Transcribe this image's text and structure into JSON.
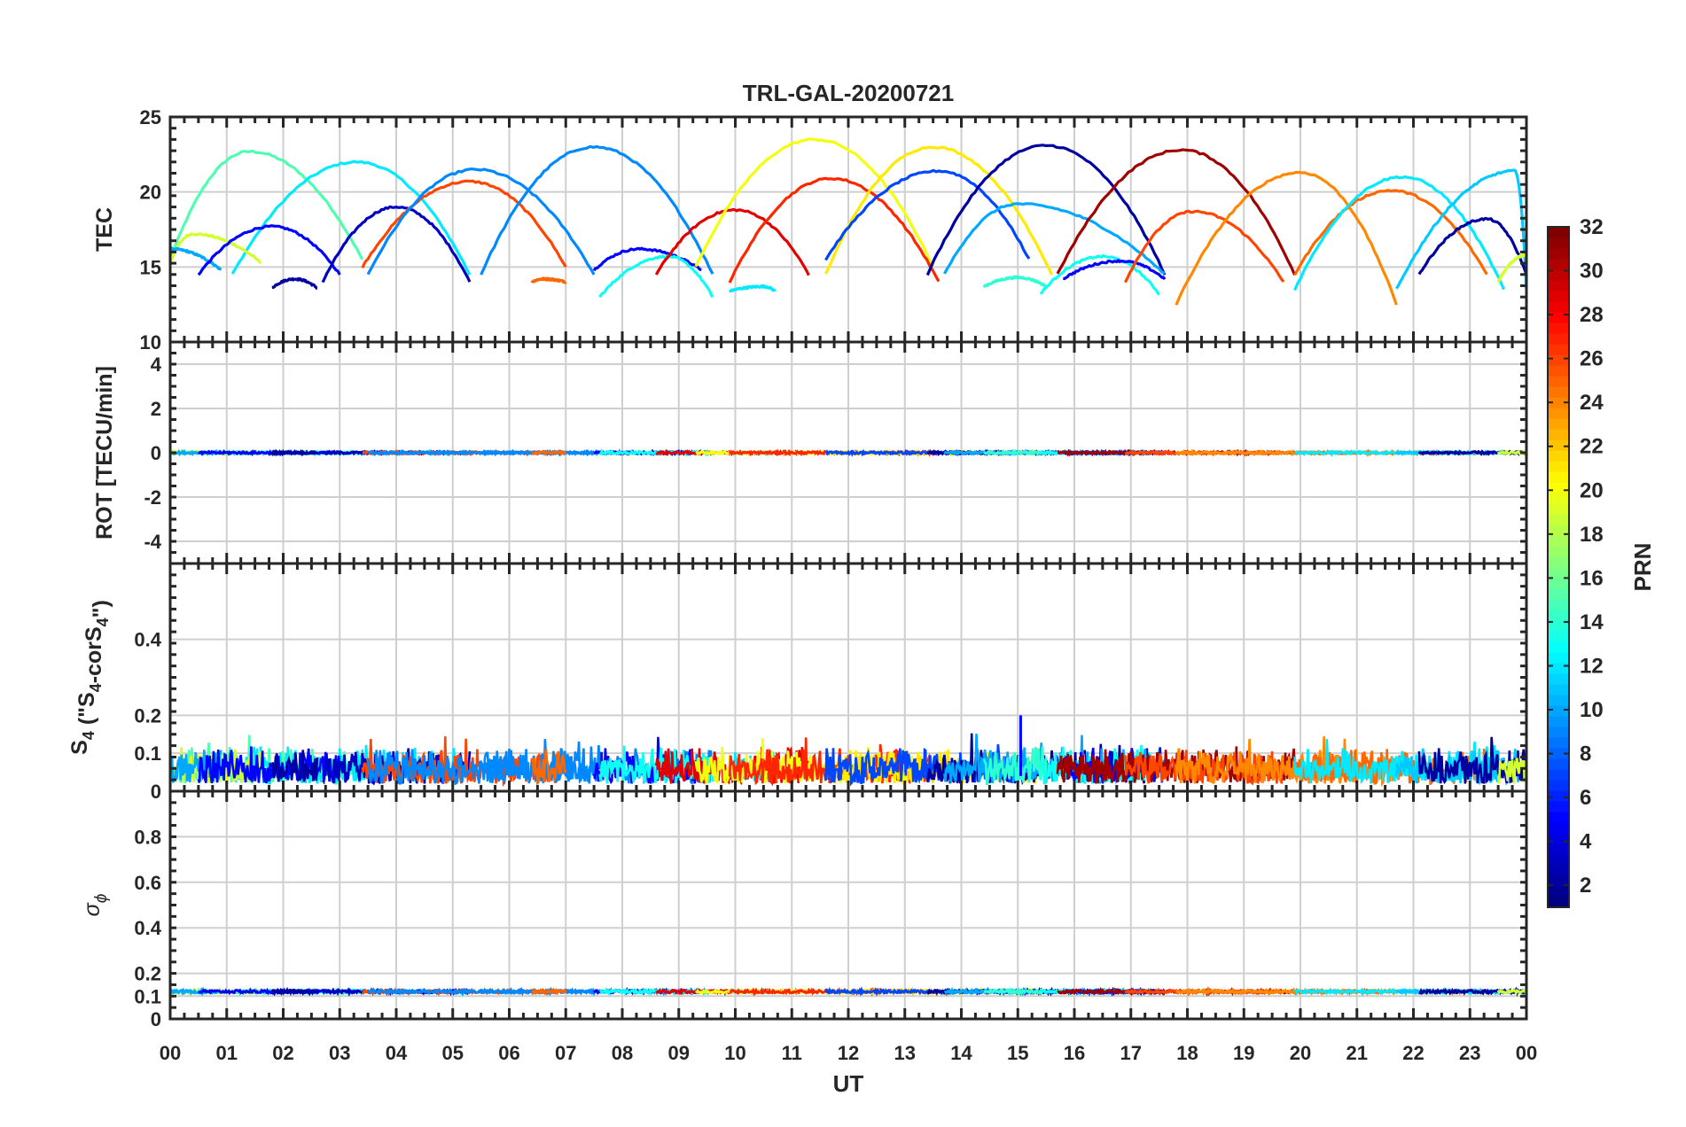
{
  "chart_data": {
    "type": "line",
    "title": "TRL-GAL-20200721",
    "xlabel": "UT",
    "x_ticks": [
      "00",
      "01",
      "02",
      "03",
      "04",
      "05",
      "06",
      "07",
      "08",
      "09",
      "10",
      "11",
      "12",
      "13",
      "14",
      "15",
      "16",
      "17",
      "18",
      "19",
      "20",
      "21",
      "22",
      "23",
      "00"
    ],
    "xlim": [
      0,
      24
    ],
    "grid": true,
    "colormap": "jet",
    "colorbar": {
      "label": "PRN",
      "range": [
        1,
        32
      ],
      "ticks": [
        "2",
        "4",
        "6",
        "8",
        "10",
        "12",
        "14",
        "16",
        "18",
        "20",
        "22",
        "24",
        "26",
        "28",
        "30",
        "32"
      ],
      "placement": "right"
    },
    "panels": [
      {
        "id": "tec",
        "ylabel": "TEC",
        "ylim": [
          10,
          25
        ],
        "y_ticks": [
          "10",
          "15",
          "20",
          "25"
        ],
        "arcs": [
          {
            "prn": 15,
            "start": 0.0,
            "end": 3.4,
            "peak": 1.4,
            "peak_value": 22.7,
            "edge_value": 15.5
          },
          {
            "prn": 12,
            "start": 1.1,
            "end": 5.3,
            "peak": 3.3,
            "peak_value": 22.0,
            "edge_value": 14.5
          },
          {
            "prn": 19,
            "start": 0.0,
            "end": 1.6,
            "peak": 0.4,
            "peak_value": 17.2,
            "edge_value": 15.3
          },
          {
            "prn": 10,
            "start": 0.0,
            "end": 0.9,
            "peak": 0.0,
            "peak_value": 16.2,
            "edge_value": 14.8
          },
          {
            "prn": 5,
            "start": 0.5,
            "end": 3.0,
            "peak": 1.8,
            "peak_value": 17.7,
            "edge_value": 14.5
          },
          {
            "prn": 2,
            "start": 1.8,
            "end": 2.6,
            "peak": 2.2,
            "peak_value": 14.2,
            "edge_value": 13.6
          },
          {
            "prn": 3,
            "start": 2.7,
            "end": 5.3,
            "peak": 4.0,
            "peak_value": 19.0,
            "edge_value": 14.0
          },
          {
            "prn": 26,
            "start": 3.4,
            "end": 7.0,
            "peak": 5.3,
            "peak_value": 20.7,
            "edge_value": 15.0
          },
          {
            "prn": 9,
            "start": 3.5,
            "end": 7.5,
            "peak": 5.4,
            "peak_value": 21.5,
            "edge_value": 14.5
          },
          {
            "prn": 9,
            "start": 5.5,
            "end": 9.6,
            "peak": 7.5,
            "peak_value": 23.0,
            "edge_value": 14.5
          },
          {
            "prn": 25,
            "start": 6.4,
            "end": 7.0,
            "peak": 6.6,
            "peak_value": 14.2,
            "edge_value": 14.0
          },
          {
            "prn": 5,
            "start": 7.5,
            "end": 9.4,
            "peak": 8.3,
            "peak_value": 16.2,
            "edge_value": 14.8
          },
          {
            "prn": 13,
            "start": 7.6,
            "end": 9.6,
            "peak": 8.8,
            "peak_value": 15.7,
            "edge_value": 13.0
          },
          {
            "prn": 29,
            "start": 8.6,
            "end": 11.3,
            "peak": 10.0,
            "peak_value": 18.8,
            "edge_value": 14.5
          },
          {
            "prn": 12,
            "start": 9.9,
            "end": 10.7,
            "peak": 10.5,
            "peak_value": 13.7,
            "edge_value": 13.4
          },
          {
            "prn": 20,
            "start": 9.3,
            "end": 13.5,
            "peak": 11.4,
            "peak_value": 23.5,
            "edge_value": 15.0
          },
          {
            "prn": 27,
            "start": 9.9,
            "end": 13.6,
            "peak": 11.7,
            "peak_value": 20.9,
            "edge_value": 14.0
          },
          {
            "prn": 21,
            "start": 11.6,
            "end": 15.6,
            "peak": 13.5,
            "peak_value": 23.0,
            "edge_value": 14.5
          },
          {
            "prn": 7,
            "start": 11.6,
            "end": 15.2,
            "peak": 13.6,
            "peak_value": 21.4,
            "edge_value": 15.5
          },
          {
            "prn": 2,
            "start": 13.4,
            "end": 17.6,
            "peak": 15.5,
            "peak_value": 23.1,
            "edge_value": 14.5
          },
          {
            "prn": 10,
            "start": 13.7,
            "end": 17.6,
            "peak": 15.0,
            "peak_value": 19.2,
            "edge_value": 14.5
          },
          {
            "prn": 14,
            "start": 14.4,
            "end": 15.5,
            "peak": 15.0,
            "peak_value": 14.3,
            "edge_value": 13.7
          },
          {
            "prn": 13,
            "start": 15.4,
            "end": 17.5,
            "peak": 16.5,
            "peak_value": 15.7,
            "edge_value": 13.2
          },
          {
            "prn": 5,
            "start": 15.8,
            "end": 17.6,
            "peak": 16.8,
            "peak_value": 15.4,
            "edge_value": 14.2
          },
          {
            "prn": 31,
            "start": 15.7,
            "end": 19.9,
            "peak": 17.9,
            "peak_value": 22.8,
            "edge_value": 14.5
          },
          {
            "prn": 26,
            "start": 16.9,
            "end": 19.7,
            "peak": 18.1,
            "peak_value": 18.7,
            "edge_value": 14.0
          },
          {
            "prn": 24,
            "start": 17.8,
            "end": 21.7,
            "peak": 20.0,
            "peak_value": 21.3,
            "edge_value": 12.5
          },
          {
            "prn": 25,
            "start": 19.9,
            "end": 23.3,
            "peak": 21.6,
            "peak_value": 20.1,
            "edge_value": 14.5
          },
          {
            "prn": 12,
            "start": 19.9,
            "end": 23.6,
            "peak": 21.8,
            "peak_value": 21.0,
            "edge_value": 13.5
          },
          {
            "prn": 11,
            "start": 21.7,
            "end": 24.0,
            "peak": 23.8,
            "peak_value": 21.4,
            "edge_value": 13.5
          },
          {
            "prn": 2,
            "start": 22.1,
            "end": 24.0,
            "peak": 23.3,
            "peak_value": 18.2,
            "edge_value": 14.5
          },
          {
            "prn": 19,
            "start": 23.5,
            "end": 24.0,
            "peak": 24.0,
            "peak_value": 15.8,
            "edge_value": 14.0
          }
        ]
      },
      {
        "id": "rot",
        "ylabel": "ROT [TECU/min]",
        "ylim": [
          -5,
          5
        ],
        "y_ticks": [
          "-4",
          "-2",
          "0",
          "2",
          "4"
        ],
        "baseline": 0,
        "noise": 0.05
      },
      {
        "id": "s4",
        "ylabel": "S4 (\"S4-corS4\")",
        "ylim": [
          0,
          0.6
        ],
        "y_ticks": [
          "0",
          "0.1",
          "0.2",
          "0.4"
        ],
        "typical_range": [
          0.02,
          0.12
        ],
        "max_spike": {
          "x": 15.05,
          "value": 0.2,
          "prn": 5
        }
      },
      {
        "id": "sigma-phi",
        "ylabel": "σ ϕ",
        "ylim": [
          0,
          1
        ],
        "y_ticks": [
          "0",
          "0.1",
          "0.2",
          "0.4",
          "0.6",
          "0.8"
        ],
        "baseline": 0.12
      }
    ]
  }
}
